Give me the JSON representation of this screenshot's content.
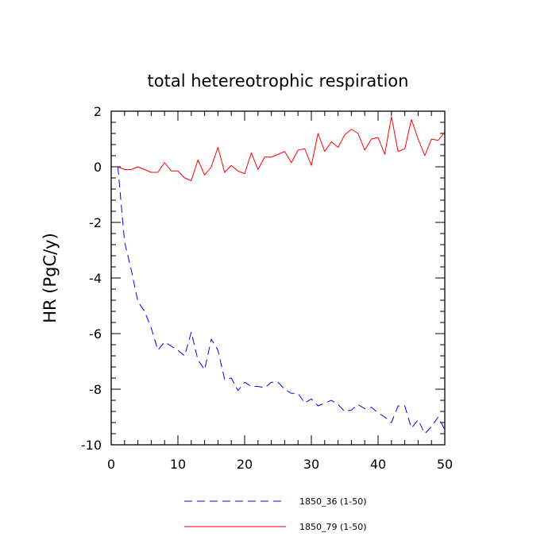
{
  "chart_data": {
    "type": "line",
    "title": "total hetereotrophic respiration",
    "xlabel": "",
    "ylabel": "HR  (PgC/y)",
    "xlim": [
      0,
      50
    ],
    "ylim": [
      -10,
      2
    ],
    "x_ticks": [
      0,
      10,
      20,
      30,
      40,
      50
    ],
    "y_ticks": [
      2,
      0,
      -2,
      -4,
      -6,
      -8,
      -10
    ],
    "x_tick_labels": [
      "0",
      "10",
      "20",
      "30",
      "40",
      "50"
    ],
    "y_tick_labels": [
      "2",
      "0",
      "-2",
      "-4",
      "-6",
      "-8",
      "-10"
    ],
    "legend_position": "bottom-center",
    "series": [
      {
        "name": "1850_36 (1-50)",
        "color": "#0000ff",
        "style": "dashed",
        "x": [
          1,
          2,
          3,
          4,
          5,
          6,
          7,
          8,
          9,
          10,
          11,
          12,
          13,
          14,
          15,
          16,
          17,
          18,
          19,
          20,
          21,
          22,
          23,
          24,
          25,
          26,
          27,
          28,
          29,
          30,
          31,
          32,
          33,
          34,
          35,
          36,
          37,
          38,
          39,
          40,
          41,
          42,
          43,
          44,
          45,
          46,
          47,
          48,
          49,
          50
        ],
        "values": [
          0.0,
          -2.7,
          -3.7,
          -4.85,
          -5.2,
          -5.8,
          -6.6,
          -6.3,
          -6.45,
          -6.6,
          -6.8,
          -5.95,
          -6.95,
          -7.3,
          -6.2,
          -6.6,
          -7.65,
          -7.6,
          -8.05,
          -7.75,
          -7.9,
          -7.9,
          -7.95,
          -7.75,
          -7.75,
          -8.0,
          -8.15,
          -8.15,
          -8.5,
          -8.35,
          -8.6,
          -8.5,
          -8.4,
          -8.55,
          -8.8,
          -8.75,
          -8.55,
          -8.7,
          -8.65,
          -8.85,
          -9.0,
          -9.2,
          -8.6,
          -8.6,
          -9.4,
          -9.1,
          -9.6,
          -9.35,
          -9.0,
          -9.45
        ]
      },
      {
        "name": "1850_79 (1-50)",
        "color": "#ff0000",
        "style": "solid",
        "x": [
          1,
          2,
          3,
          4,
          5,
          6,
          7,
          8,
          9,
          10,
          11,
          12,
          13,
          14,
          15,
          16,
          17,
          18,
          19,
          20,
          21,
          22,
          23,
          24,
          25,
          26,
          27,
          28,
          29,
          30,
          31,
          32,
          33,
          34,
          35,
          36,
          37,
          38,
          39,
          40,
          41,
          42,
          43,
          44,
          45,
          46,
          47,
          48,
          49,
          50
        ],
        "values": [
          0.0,
          -0.1,
          -0.1,
          0.0,
          -0.1,
          -0.2,
          -0.2,
          0.15,
          -0.15,
          -0.15,
          -0.4,
          -0.5,
          0.25,
          -0.3,
          0.0,
          0.7,
          -0.2,
          0.05,
          -0.15,
          -0.25,
          0.5,
          -0.1,
          0.35,
          0.35,
          0.45,
          0.55,
          0.15,
          0.6,
          0.65,
          0.05,
          1.2,
          0.55,
          0.9,
          0.7,
          1.15,
          1.35,
          1.2,
          0.6,
          1.0,
          1.05,
          0.45,
          1.8,
          0.55,
          0.65,
          1.7,
          1.0,
          0.4,
          1.0,
          0.95,
          1.25
        ]
      }
    ]
  }
}
